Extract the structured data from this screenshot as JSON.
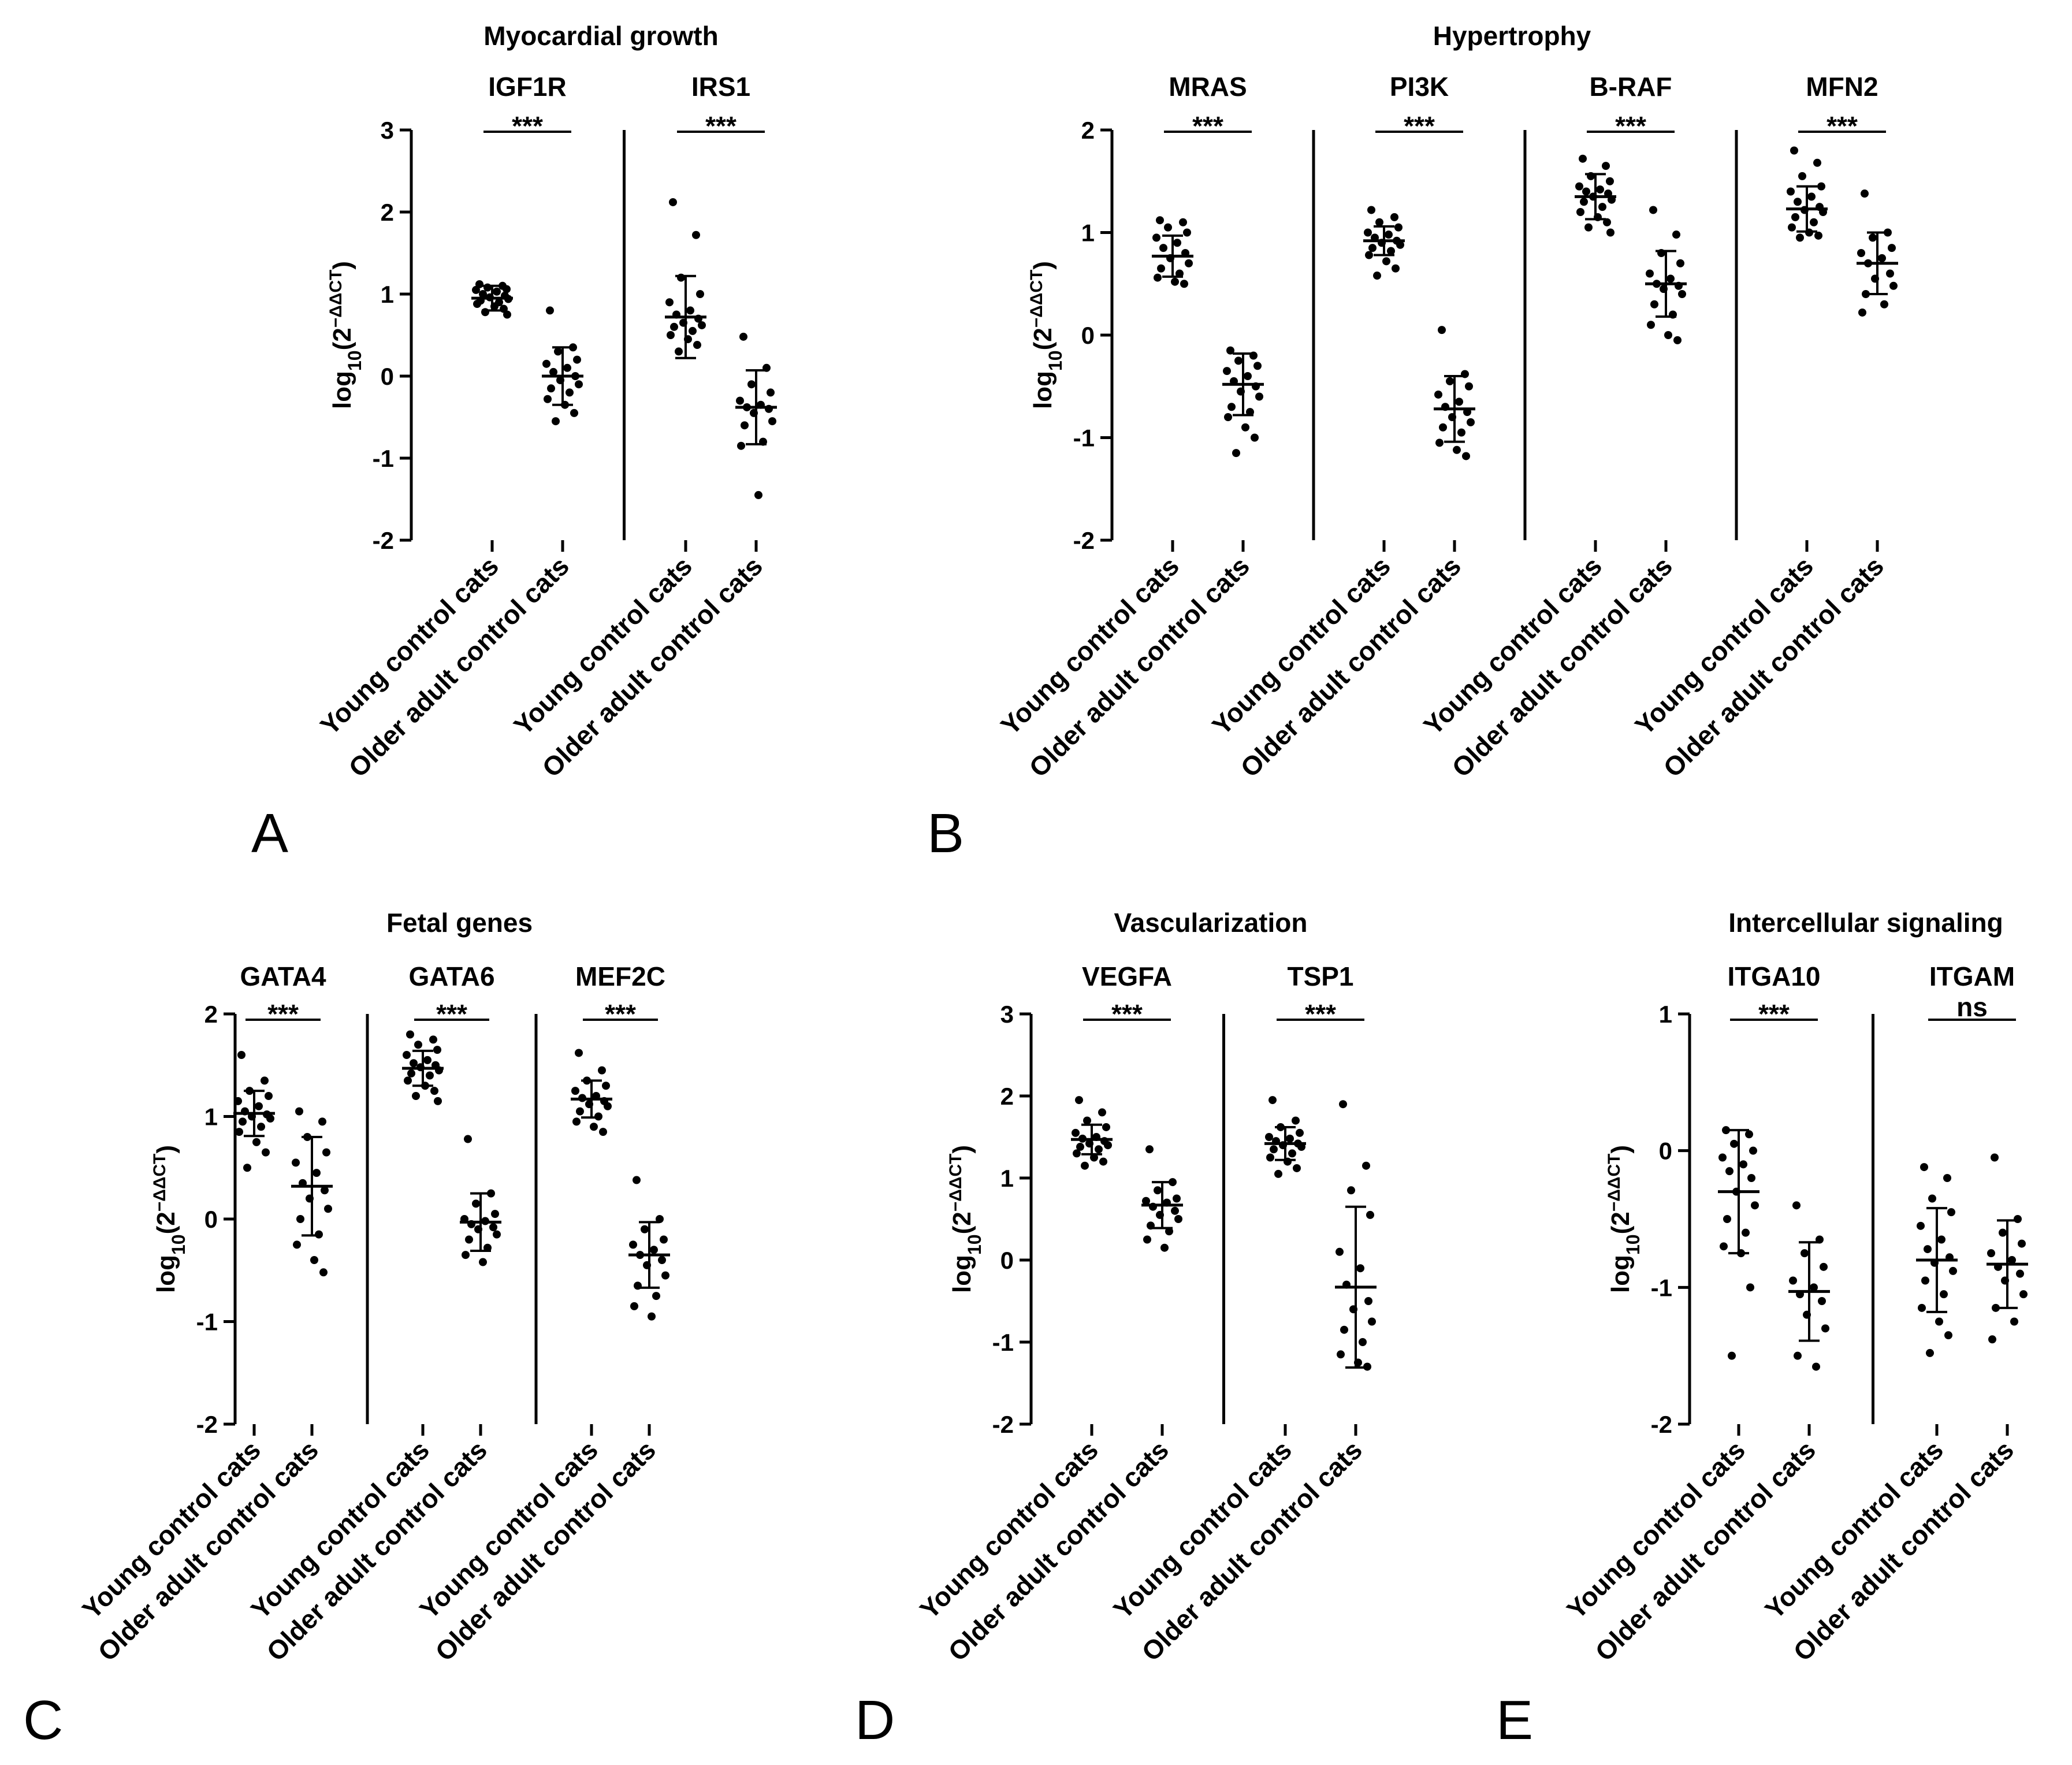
{
  "chart_data": [
    {
      "panel": "A",
      "type": "scatter",
      "title": "Myocardial growth",
      "ylabel_base": "log",
      "ylabel_sub": "10",
      "ylabel_expr": "(2",
      "ylabel_sup": "−ΔΔCT",
      "ylabel_close": ")",
      "ylim": [
        -2,
        3
      ],
      "yticks": [
        "3",
        "2",
        "1",
        "0",
        "-1",
        "-2"
      ],
      "categories": [
        "Young control cats",
        "Older adult control cats"
      ],
      "genes": [
        {
          "name": "IGF1R",
          "sig": "***",
          "groups": [
            {
              "mean": 0.95,
              "sd": 0.15,
              "values": [
                1.12,
                1.1,
                1.08,
                1.06,
                1.05,
                1.03,
                1.0,
                0.98,
                0.96,
                0.94,
                0.92,
                0.9,
                0.88,
                0.85,
                0.82,
                0.78,
                0.75
              ]
            },
            {
              "mean": 0.0,
              "sd": 0.35,
              "values": [
                0.8,
                0.35,
                0.3,
                0.2,
                0.15,
                0.1,
                0.05,
                0.0,
                -0.05,
                -0.1,
                -0.15,
                -0.2,
                -0.28,
                -0.35,
                -0.45,
                -0.55
              ]
            }
          ]
        },
        {
          "name": "IRS1",
          "sig": "***",
          "groups": [
            {
              "mean": 0.72,
              "sd": 0.5,
              "values": [
                2.12,
                1.72,
                1.2,
                1.0,
                0.9,
                0.8,
                0.75,
                0.7,
                0.65,
                0.62,
                0.6,
                0.55,
                0.5,
                0.45,
                0.38,
                0.3
              ]
            },
            {
              "mean": -0.38,
              "sd": 0.45,
              "values": [
                0.48,
                0.1,
                -0.1,
                -0.2,
                -0.3,
                -0.35,
                -0.38,
                -0.4,
                -0.45,
                -0.55,
                -0.6,
                -0.8,
                -0.85,
                -1.45
              ]
            }
          ]
        }
      ]
    },
    {
      "panel": "B",
      "type": "scatter",
      "title": "Hypertrophy",
      "ylabel_base": "log",
      "ylabel_sub": "10",
      "ylabel_expr": "(2",
      "ylabel_sup": "−ΔΔCT",
      "ylabel_close": ")",
      "ylim": [
        -2,
        2
      ],
      "yticks": [
        "2",
        "1",
        "0",
        "-1",
        "-2"
      ],
      "categories": [
        "Young control cats",
        "Older adult control cats"
      ],
      "genes": [
        {
          "name": "MRAS",
          "sig": "***",
          "groups": [
            {
              "mean": 0.77,
              "sd": 0.2,
              "values": [
                1.12,
                1.1,
                1.05,
                1.0,
                0.95,
                0.9,
                0.85,
                0.8,
                0.75,
                0.7,
                0.65,
                0.6,
                0.56,
                0.52,
                0.5
              ]
            },
            {
              "mean": -0.48,
              "sd": 0.3,
              "values": [
                -0.15,
                -0.2,
                -0.25,
                -0.3,
                -0.35,
                -0.4,
                -0.45,
                -0.5,
                -0.55,
                -0.6,
                -0.7,
                -0.75,
                -0.8,
                -0.9,
                -1.0,
                -1.15
              ]
            }
          ]
        },
        {
          "name": "PI3K",
          "sig": "***",
          "groups": [
            {
              "mean": 0.92,
              "sd": 0.14,
              "values": [
                1.22,
                1.15,
                1.1,
                1.05,
                1.0,
                0.98,
                0.95,
                0.92,
                0.9,
                0.88,
                0.85,
                0.82,
                0.78,
                0.72,
                0.65,
                0.58
              ]
            },
            {
              "mean": -0.72,
              "sd": 0.32,
              "values": [
                0.05,
                -0.38,
                -0.45,
                -0.5,
                -0.58,
                -0.65,
                -0.7,
                -0.75,
                -0.8,
                -0.85,
                -0.9,
                -0.95,
                -1.05,
                -1.12,
                -1.18
              ]
            }
          ]
        },
        {
          "name": "B-RAF",
          "sig": "***",
          "groups": [
            {
              "mean": 1.35,
              "sd": 0.22,
              "values": [
                1.72,
                1.65,
                1.55,
                1.5,
                1.45,
                1.42,
                1.4,
                1.38,
                1.35,
                1.32,
                1.3,
                1.25,
                1.2,
                1.15,
                1.1,
                1.05,
                1.0
              ]
            },
            {
              "mean": 0.5,
              "sd": 0.32,
              "values": [
                1.22,
                0.98,
                0.8,
                0.7,
                0.6,
                0.55,
                0.5,
                0.48,
                0.45,
                0.4,
                0.3,
                0.2,
                0.1,
                0.0,
                -0.05
              ]
            }
          ]
        },
        {
          "name": "MFN2",
          "sig": "***",
          "groups": [
            {
              "mean": 1.23,
              "sd": 0.22,
              "values": [
                1.8,
                1.68,
                1.55,
                1.45,
                1.4,
                1.35,
                1.3,
                1.25,
                1.22,
                1.2,
                1.15,
                1.1,
                1.05,
                1.0,
                0.97,
                0.95
              ]
            },
            {
              "mean": 0.7,
              "sd": 0.3,
              "values": [
                1.38,
                1.0,
                0.95,
                0.85,
                0.8,
                0.75,
                0.7,
                0.6,
                0.55,
                0.48,
                0.4,
                0.3,
                0.22
              ]
            }
          ]
        }
      ]
    },
    {
      "panel": "C",
      "type": "scatter",
      "title": "Fetal genes",
      "ylabel_base": "log",
      "ylabel_sub": "10",
      "ylabel_expr": "(2",
      "ylabel_sup": "−ΔΔCT",
      "ylabel_close": ")",
      "ylim": [
        -2,
        2
      ],
      "yticks": [
        "2",
        "1",
        "0",
        "-1",
        "-2"
      ],
      "categories": [
        "Young control cats",
        "Older adult control cats"
      ],
      "genes": [
        {
          "name": "GATA4",
          "sig": "***",
          "groups": [
            {
              "mean": 1.03,
              "sd": 0.22,
              "values": [
                1.6,
                1.35,
                1.25,
                1.2,
                1.15,
                1.1,
                1.05,
                1.02,
                1.0,
                0.98,
                0.95,
                0.9,
                0.85,
                0.75,
                0.65,
                0.5
              ]
            },
            {
              "mean": 0.32,
              "sd": 0.48,
              "values": [
                1.05,
                0.95,
                0.8,
                0.65,
                0.55,
                0.45,
                0.35,
                0.28,
                0.2,
                0.1,
                0.0,
                -0.15,
                -0.25,
                -0.4,
                -0.52
              ]
            }
          ]
        },
        {
          "name": "GATA6",
          "sig": "***",
          "groups": [
            {
              "mean": 1.47,
              "sd": 0.17,
              "values": [
                1.8,
                1.75,
                1.7,
                1.65,
                1.6,
                1.55,
                1.52,
                1.5,
                1.48,
                1.45,
                1.42,
                1.4,
                1.35,
                1.3,
                1.25,
                1.2,
                1.15
              ]
            },
            {
              "mean": -0.03,
              "sd": 0.28,
              "values": [
                0.78,
                0.25,
                0.15,
                0.05,
                0.0,
                -0.02,
                -0.05,
                -0.08,
                -0.1,
                -0.15,
                -0.2,
                -0.28,
                -0.35,
                -0.42
              ]
            }
          ]
        },
        {
          "name": "MEF2C",
          "sig": "***",
          "groups": [
            {
              "mean": 1.17,
              "sd": 0.18,
              "values": [
                1.62,
                1.45,
                1.35,
                1.3,
                1.25,
                1.2,
                1.18,
                1.15,
                1.12,
                1.1,
                1.05,
                1.0,
                0.95,
                0.9,
                0.85
              ]
            },
            {
              "mean": -0.35,
              "sd": 0.32,
              "values": [
                0.38,
                0.0,
                -0.1,
                -0.2,
                -0.25,
                -0.3,
                -0.35,
                -0.4,
                -0.45,
                -0.55,
                -0.65,
                -0.75,
                -0.85,
                -0.95
              ]
            }
          ]
        }
      ]
    },
    {
      "panel": "D",
      "type": "scatter",
      "title": "Vascularization",
      "ylabel_base": "log",
      "ylabel_sub": "10",
      "ylabel_expr": "(2",
      "ylabel_sup": "−ΔΔCT",
      "ylabel_close": ")",
      "ylim": [
        -2,
        3
      ],
      "yticks": [
        "3",
        "2",
        "1",
        "0",
        "-1",
        "-2"
      ],
      "categories": [
        "Young control cats",
        "Older adult control cats"
      ],
      "genes": [
        {
          "name": "VEGFA",
          "sig": "***",
          "groups": [
            {
              "mean": 1.47,
              "sd": 0.18,
              "values": [
                1.95,
                1.8,
                1.7,
                1.62,
                1.55,
                1.5,
                1.48,
                1.45,
                1.42,
                1.4,
                1.38,
                1.35,
                1.3,
                1.25,
                1.2,
                1.15
              ]
            },
            {
              "mean": 0.67,
              "sd": 0.28,
              "values": [
                1.35,
                0.95,
                0.85,
                0.75,
                0.72,
                0.7,
                0.65,
                0.6,
                0.55,
                0.5,
                0.42,
                0.35,
                0.25,
                0.15
              ]
            }
          ]
        },
        {
          "name": "TSP1",
          "sig": "***",
          "groups": [
            {
              "mean": 1.42,
              "sd": 0.2,
              "values": [
                1.95,
                1.7,
                1.62,
                1.55,
                1.5,
                1.48,
                1.45,
                1.42,
                1.4,
                1.38,
                1.35,
                1.3,
                1.25,
                1.2,
                1.12,
                1.05
              ]
            },
            {
              "mean": -0.33,
              "sd": 0.98,
              "values": [
                1.9,
                1.15,
                0.85,
                0.55,
                0.1,
                -0.1,
                -0.3,
                -0.5,
                -0.6,
                -0.75,
                -0.85,
                -1.0,
                -1.15,
                -1.25,
                -1.3
              ]
            }
          ]
        }
      ]
    },
    {
      "panel": "E",
      "type": "scatter",
      "title": "Intercellular signaling",
      "ylabel_base": "log",
      "ylabel_sub": "10",
      "ylabel_expr": "(2",
      "ylabel_sup": "−ΔΔCT",
      "ylabel_close": ")",
      "ylim": [
        -2,
        1
      ],
      "yticks": [
        "1",
        "0",
        "-1",
        "-2"
      ],
      "categories": [
        "Young control cats",
        "Older adult control cats"
      ],
      "genes": [
        {
          "name": "ITGA10",
          "sig": "***",
          "groups": [
            {
              "mean": -0.3,
              "sd": 0.45,
              "values": [
                0.15,
                0.12,
                0.05,
                0.0,
                -0.05,
                -0.1,
                -0.15,
                -0.2,
                -0.3,
                -0.4,
                -0.5,
                -0.6,
                -0.7,
                -0.75,
                -1.0,
                -1.5
              ]
            },
            {
              "mean": -1.03,
              "sd": 0.36,
              "values": [
                -0.4,
                -0.65,
                -0.75,
                -0.85,
                -0.95,
                -1.0,
                -1.05,
                -1.1,
                -1.2,
                -1.3,
                -1.5,
                -1.58
              ]
            }
          ]
        },
        {
          "name": "ITGAM",
          "sig": "ns",
          "groups": [
            {
              "mean": -0.8,
              "sd": 0.38,
              "values": [
                -0.12,
                -0.2,
                -0.35,
                -0.45,
                -0.55,
                -0.65,
                -0.72,
                -0.78,
                -0.82,
                -0.88,
                -0.95,
                -1.05,
                -1.15,
                -1.25,
                -1.35,
                -1.48
              ]
            },
            {
              "mean": -0.83,
              "sd": 0.32,
              "values": [
                -0.05,
                -0.5,
                -0.6,
                -0.68,
                -0.75,
                -0.8,
                -0.85,
                -0.9,
                -0.95,
                -1.05,
                -1.15,
                -1.25,
                -1.38
              ]
            }
          ]
        }
      ]
    }
  ]
}
